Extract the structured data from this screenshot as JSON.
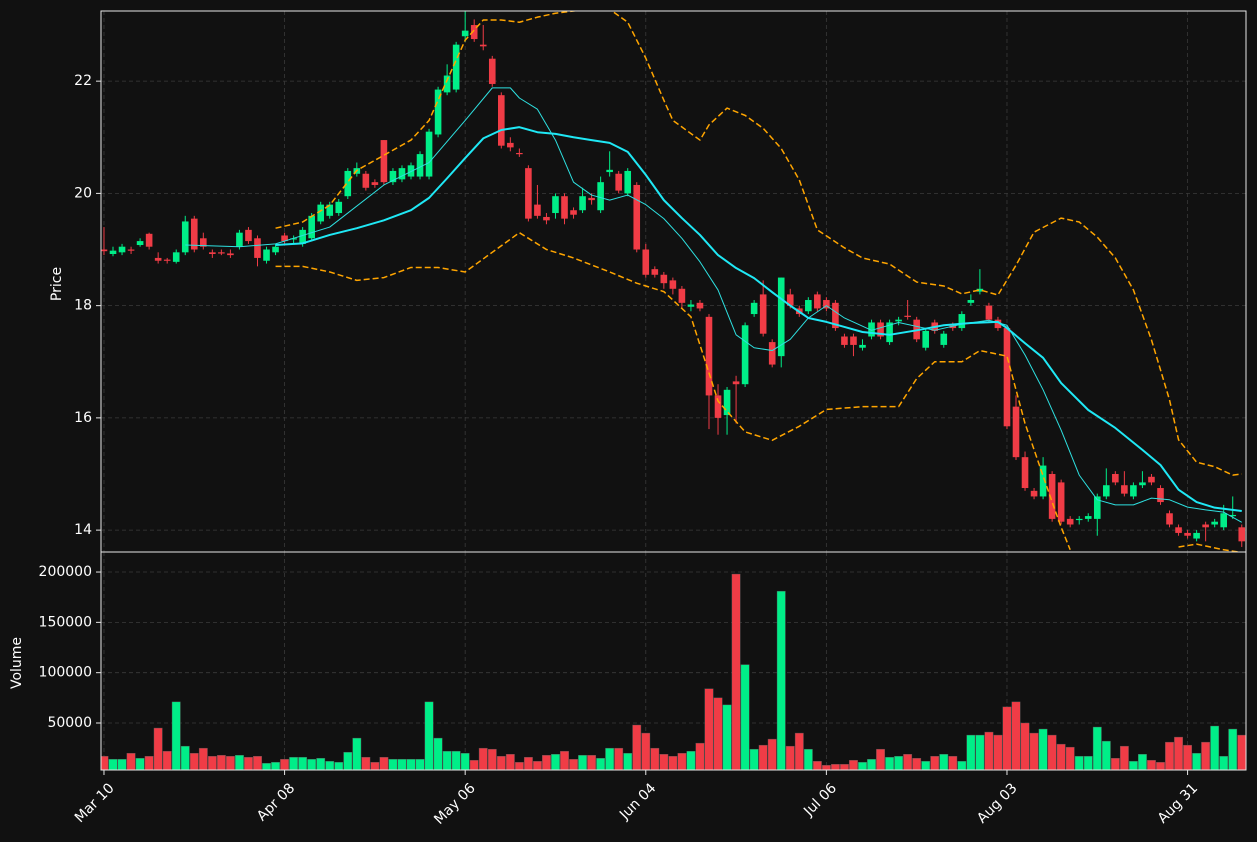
{
  "chart_data": [
    {
      "type": "candlestick",
      "ylabel": "Price",
      "grid": true,
      "up_color": "#00ee88",
      "down_color": "#f03c46",
      "ylim": [
        13.61,
        23.25
      ],
      "yticks": [
        14,
        16,
        18,
        20,
        22
      ],
      "open": [
        19.0,
        18.92,
        18.95,
        19.0,
        19.08,
        19.28,
        18.85,
        18.82,
        18.78,
        18.95,
        19.55,
        19.2,
        18.95,
        18.95,
        18.93,
        19.05,
        19.35,
        19.2,
        18.8,
        18.95,
        19.25,
        19.18,
        19.1,
        19.2,
        19.5,
        19.6,
        19.65,
        19.95,
        20.35,
        20.35,
        20.2,
        20.95,
        20.2,
        20.25,
        20.3,
        20.3,
        20.3,
        21.05,
        21.8,
        21.85,
        22.8,
        23.0,
        22.65,
        22.4,
        21.75,
        20.9,
        20.72,
        20.45,
        19.8,
        19.58,
        19.65,
        19.95,
        19.7,
        19.7,
        19.92,
        19.7,
        20.38,
        20.35,
        20.0,
        20.15,
        19.0,
        18.65,
        18.55,
        18.45,
        18.3,
        17.98,
        18.05,
        17.8,
        16.4,
        16.05,
        16.65,
        16.6,
        17.85,
        18.2,
        17.35,
        17.1,
        18.2,
        17.95,
        17.9,
        18.2,
        18.1,
        18.05,
        17.45,
        17.45,
        17.25,
        17.45,
        17.7,
        17.35,
        17.72,
        17.82,
        17.75,
        17.25,
        17.7,
        17.3,
        17.65,
        17.6,
        18.05,
        18.25,
        18.0,
        17.75,
        17.6,
        16.2,
        15.3,
        14.7,
        14.6,
        15.0,
        14.85,
        14.2,
        14.18,
        14.2,
        14.2,
        14.6,
        15.0,
        14.8,
        14.6,
        14.8,
        14.95,
        14.75,
        14.3,
        14.05,
        13.95,
        13.85,
        14.1,
        14.1,
        14.05,
        14.25,
        14.05
      ],
      "high": [
        19.4,
        19.05,
        19.1,
        19.05,
        19.2,
        19.3,
        18.95,
        18.85,
        19.0,
        19.6,
        19.6,
        19.3,
        19.0,
        19.0,
        19.0,
        19.35,
        19.4,
        19.25,
        19.05,
        19.1,
        19.3,
        19.25,
        19.4,
        19.65,
        19.85,
        19.85,
        19.9,
        20.45,
        20.55,
        20.4,
        20.25,
        20.95,
        20.45,
        20.5,
        20.55,
        20.75,
        21.15,
        21.9,
        22.3,
        22.7,
        23.25,
        23.1,
        23.0,
        22.45,
        21.8,
        21.0,
        20.8,
        20.5,
        20.15,
        19.65,
        20.0,
        20.0,
        19.75,
        20.1,
        20.0,
        20.3,
        20.75,
        20.4,
        20.45,
        20.2,
        19.1,
        18.7,
        18.6,
        18.5,
        18.35,
        18.1,
        18.1,
        17.85,
        16.6,
        16.55,
        16.75,
        17.7,
        18.1,
        18.45,
        17.4,
        18.5,
        18.3,
        18.0,
        18.15,
        18.25,
        18.15,
        18.1,
        17.5,
        17.5,
        17.4,
        17.75,
        17.75,
        17.75,
        17.8,
        18.1,
        17.8,
        17.6,
        17.75,
        17.55,
        17.7,
        17.9,
        18.2,
        18.65,
        18.05,
        17.8,
        17.65,
        16.4,
        15.4,
        14.75,
        15.3,
        15.05,
        14.9,
        14.25,
        14.25,
        14.3,
        14.65,
        15.1,
        15.05,
        15.05,
        14.85,
        15.05,
        15.0,
        14.8,
        14.35,
        14.1,
        14.0,
        14.0,
        14.15,
        14.2,
        14.45,
        14.6,
        14.1
      ],
      "low": [
        18.9,
        18.88,
        18.9,
        18.92,
        19.05,
        19.0,
        18.75,
        18.75,
        18.75,
        18.9,
        18.95,
        19.0,
        18.85,
        18.9,
        18.85,
        19.0,
        19.1,
        18.7,
        18.75,
        18.9,
        19.1,
        19.1,
        19.05,
        19.15,
        19.45,
        19.55,
        19.6,
        19.9,
        20.3,
        20.05,
        20.1,
        20.15,
        20.15,
        20.2,
        20.25,
        20.25,
        20.25,
        21.0,
        21.75,
        21.8,
        22.7,
        22.7,
        22.55,
        21.9,
        20.8,
        20.75,
        20.65,
        19.5,
        19.55,
        19.45,
        19.55,
        19.45,
        19.55,
        19.65,
        19.8,
        19.65,
        20.3,
        20.0,
        19.95,
        18.95,
        18.5,
        18.5,
        18.3,
        18.2,
        17.95,
        17.9,
        17.9,
        15.8,
        15.7,
        15.7,
        15.9,
        16.55,
        17.8,
        17.45,
        16.9,
        16.9,
        17.95,
        17.8,
        17.85,
        17.9,
        17.9,
        17.55,
        17.25,
        17.1,
        17.2,
        17.4,
        17.4,
        17.3,
        17.65,
        17.75,
        17.35,
        17.2,
        17.5,
        17.25,
        17.55,
        17.55,
        18.0,
        18.2,
        17.7,
        17.55,
        15.8,
        15.25,
        14.7,
        14.55,
        14.55,
        14.15,
        14.1,
        14.05,
        14.1,
        14.15,
        13.9,
        14.55,
        14.8,
        14.6,
        14.55,
        14.75,
        14.8,
        14.45,
        14.05,
        13.9,
        13.85,
        13.8,
        13.8,
        14.05,
        14.0,
        14.2,
        13.7
      ],
      "close": [
        18.97,
        18.98,
        19.05,
        18.98,
        19.15,
        19.05,
        18.8,
        18.8,
        18.95,
        19.5,
        19.0,
        19.05,
        18.92,
        18.93,
        18.9,
        19.3,
        19.15,
        18.85,
        19.0,
        19.05,
        19.15,
        19.2,
        19.35,
        19.6,
        19.8,
        19.8,
        19.85,
        20.4,
        20.45,
        20.1,
        20.15,
        20.2,
        20.4,
        20.45,
        20.5,
        20.7,
        21.1,
        21.85,
        22.1,
        22.65,
        22.9,
        22.75,
        22.62,
        21.95,
        20.85,
        20.82,
        20.7,
        19.55,
        19.6,
        19.52,
        19.95,
        19.55,
        19.62,
        19.95,
        19.88,
        20.2,
        20.42,
        20.05,
        20.4,
        19.0,
        18.55,
        18.55,
        18.4,
        18.3,
        18.05,
        18.02,
        17.95,
        16.4,
        16.0,
        16.5,
        16.6,
        17.65,
        18.05,
        17.5,
        16.95,
        18.5,
        18.0,
        17.85,
        18.1,
        17.95,
        17.95,
        17.6,
        17.3,
        17.3,
        17.3,
        17.7,
        17.45,
        17.7,
        17.75,
        17.8,
        17.4,
        17.55,
        17.55,
        17.5,
        17.6,
        17.85,
        18.1,
        18.3,
        17.75,
        17.6,
        15.85,
        15.3,
        14.75,
        14.6,
        15.15,
        14.2,
        14.15,
        14.1,
        14.2,
        14.25,
        14.6,
        14.8,
        14.85,
        14.65,
        14.8,
        14.85,
        14.85,
        14.5,
        14.1,
        13.95,
        13.9,
        13.95,
        14.05,
        14.15,
        14.3,
        14.27,
        13.8
      ],
      "lines": [
        {
          "color": "#2ee0e0",
          "width": 1,
          "dash": false,
          "x": [
            9,
            15,
            19,
            25,
            31,
            36,
            40,
            43,
            45,
            46,
            48,
            50,
            52,
            54,
            56,
            58,
            60,
            62,
            64,
            66,
            68,
            70,
            72,
            74,
            76,
            78,
            80,
            82,
            85,
            88,
            92,
            95,
            98,
            100,
            102,
            104,
            106,
            108,
            110,
            112,
            114,
            116,
            118,
            120,
            122,
            124,
            126
          ],
          "values": [
            19.08,
            19.05,
            19.1,
            19.4,
            20.15,
            20.55,
            21.3,
            21.88,
            21.88,
            21.7,
            21.5,
            20.95,
            20.2,
            19.97,
            19.88,
            19.97,
            19.8,
            19.55,
            19.2,
            18.78,
            18.28,
            17.48,
            17.25,
            17.2,
            17.4,
            17.78,
            18.0,
            17.78,
            17.56,
            17.7,
            17.56,
            17.67,
            17.74,
            17.65,
            17.12,
            16.5,
            15.78,
            14.98,
            14.54,
            14.45,
            14.45,
            14.57,
            14.54,
            14.41,
            14.36,
            14.32,
            14.14
          ]
        },
        {
          "color": "#1fe8f5",
          "width": 2,
          "dash": false,
          "x": [
            19,
            22,
            25,
            28,
            31,
            34,
            36,
            38,
            40,
            42,
            44,
            46,
            48,
            50,
            52,
            54,
            56,
            58,
            60,
            62,
            64,
            66,
            68,
            70,
            72,
            74,
            76,
            78,
            80,
            82,
            84,
            87,
            90,
            93,
            96,
            99,
            100,
            102,
            104,
            106,
            109,
            112,
            115,
            117,
            119,
            121,
            123,
            126
          ],
          "values": [
            19.08,
            19.11,
            19.26,
            19.38,
            19.52,
            19.7,
            19.92,
            20.27,
            20.63,
            20.98,
            21.13,
            21.18,
            21.09,
            21.06,
            21.0,
            20.95,
            20.9,
            20.74,
            20.33,
            19.88,
            19.56,
            19.26,
            18.9,
            18.67,
            18.49,
            18.24,
            18.0,
            17.78,
            17.71,
            17.62,
            17.53,
            17.48,
            17.56,
            17.65,
            17.69,
            17.71,
            17.6,
            17.33,
            17.07,
            16.62,
            16.14,
            15.82,
            15.43,
            15.16,
            14.72,
            14.5,
            14.4,
            14.34
          ]
        },
        {
          "color": "#ffa500",
          "width": 1.5,
          "dash": true,
          "x": [
            19,
            22,
            25,
            28,
            31,
            34,
            36,
            38,
            40,
            42,
            44,
            46,
            48,
            50,
            52,
            54,
            56,
            58,
            60,
            62,
            63,
            66,
            67,
            69,
            71,
            73,
            75,
            77,
            79,
            82,
            84,
            87,
            90,
            93,
            95,
            97,
            99,
            101,
            103,
            106,
            108,
            110,
            112,
            114,
            116,
            118,
            119,
            121,
            123,
            125,
            126
          ],
          "values": [
            19.38,
            19.49,
            19.79,
            20.41,
            20.68,
            20.95,
            21.3,
            22.02,
            22.73,
            23.09,
            23.09,
            23.05,
            23.14,
            23.21,
            23.25,
            23.3,
            23.28,
            23.05,
            22.41,
            21.66,
            21.3,
            20.95,
            21.22,
            21.52,
            21.39,
            21.16,
            20.8,
            20.24,
            19.35,
            19.03,
            18.85,
            18.74,
            18.42,
            18.35,
            18.21,
            18.28,
            18.19,
            18.72,
            19.31,
            19.56,
            19.49,
            19.22,
            18.85,
            18.28,
            17.39,
            16.32,
            15.61,
            15.21,
            15.13,
            14.98,
            15.0
          ]
        },
        {
          "color": "#ffa500",
          "width": 1.5,
          "dash": true,
          "x": [
            19,
            22,
            25,
            28,
            31,
            34,
            37,
            40,
            43,
            46,
            49,
            52,
            56,
            59,
            62,
            65,
            68,
            71,
            74,
            77,
            80,
            84,
            88,
            90,
            92,
            95,
            97,
            100,
            102,
            105,
            106,
            107,
            108,
            119,
            121,
            124,
            126
          ],
          "values": [
            18.7,
            18.7,
            18.6,
            18.45,
            18.5,
            18.68,
            18.68,
            18.6,
            18.95,
            19.3,
            19.0,
            18.85,
            18.6,
            18.4,
            18.25,
            17.8,
            16.3,
            15.75,
            15.6,
            15.85,
            16.15,
            16.2,
            16.2,
            16.7,
            17.0,
            17.0,
            17.2,
            17.1,
            15.9,
            14.5,
            14.05,
            13.65,
            null,
            13.7,
            13.75,
            13.65,
            13.6
          ]
        }
      ]
    },
    {
      "type": "bar",
      "ylabel": "Volume",
      "grid": true,
      "ylim": [
        3300,
        219900
      ],
      "yticks": [
        50000,
        100000,
        150000,
        200000
      ],
      "xlim": [
        -0.33,
        126.47
      ],
      "xticks": [
        {
          "value": 0,
          "label": "Mar 10"
        },
        {
          "value": 20,
          "label": "Apr 08"
        },
        {
          "value": 40,
          "label": "May 06"
        },
        {
          "value": 60,
          "label": "Jun 04"
        },
        {
          "value": 80,
          "label": "Jul 06"
        },
        {
          "value": 100,
          "label": "Aug 03"
        },
        {
          "value": 120,
          "label": "Aug 31"
        }
      ],
      "values": [
        17000,
        14000,
        14000,
        20000,
        15000,
        17000,
        45000,
        22000,
        71000,
        27000,
        20000,
        25000,
        17000,
        18000,
        17000,
        18000,
        16000,
        17000,
        10000,
        11000,
        14000,
        16000,
        16000,
        14000,
        15000,
        12000,
        11000,
        21000,
        35000,
        16000,
        11000,
        16000,
        14000,
        14000,
        14000,
        14000,
        71000,
        35000,
        22000,
        22000,
        20000,
        13000,
        25000,
        24000,
        17000,
        19000,
        11000,
        16000,
        12000,
        18000,
        19000,
        22000,
        14000,
        18000,
        18000,
        15000,
        25000,
        25000,
        20000,
        48000,
        40000,
        25000,
        19000,
        17000,
        20000,
        22000,
        30000,
        84000,
        75000,
        68000,
        198000,
        108000,
        24000,
        28000,
        34000,
        181000,
        27000,
        40000,
        24000,
        12000,
        8000,
        9000,
        9000,
        13000,
        11000,
        14000,
        24000,
        16000,
        17000,
        19000,
        15000,
        12000,
        17000,
        19000,
        17000,
        12000,
        38000,
        38000,
        41000,
        38000,
        66000,
        71000,
        50000,
        40000,
        44000,
        38000,
        29000,
        26000,
        17000,
        17000,
        46000,
        32000,
        15000,
        27000,
        12000,
        19000,
        13000,
        11000,
        31000,
        36000,
        28000,
        20000,
        31000,
        47000,
        17000,
        44000,
        38000
      ]
    }
  ]
}
